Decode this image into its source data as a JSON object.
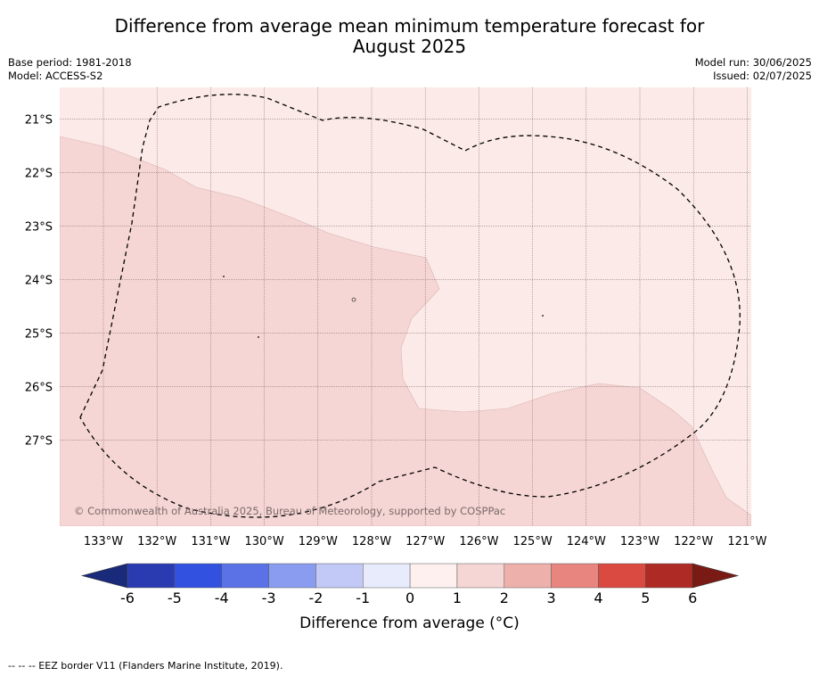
{
  "title": {
    "line1": "Difference from average mean minimum temperature forecast for",
    "line2": "August 2025"
  },
  "meta": {
    "base_period": "Base period: 1981-2018",
    "model": "Model: ACCESS-S2",
    "model_run": "Model run: 30/06/2025",
    "issued": "Issued: 02/07/2025"
  },
  "map": {
    "lat_ticks": [
      "21°S",
      "22°S",
      "23°S",
      "24°S",
      "25°S",
      "26°S",
      "27°S"
    ],
    "lon_ticks": [
      "133°W",
      "132°W",
      "131°W",
      "130°W",
      "129°W",
      "128°W",
      "127°W",
      "126°W",
      "125°W",
      "124°W",
      "123°W",
      "122°W",
      "121°W"
    ],
    "copyright": "© Commonwealth of Australia 2025, Bureau of Meteorology, supported by COSPPac",
    "colors": {
      "anomaly_0_to_1": "#fbeae8",
      "anomaly_1_to_2": "#f5d6d4",
      "grid": "#7a5a5a",
      "eez_border": "#000000"
    }
  },
  "colorbar": {
    "ticks": [
      "-6",
      "-5",
      "-4",
      "-3",
      "-2",
      "-1",
      "0",
      "1",
      "2",
      "3",
      "4",
      "5",
      "6"
    ],
    "colors": [
      "#1a2a7a",
      "#2a3bb2",
      "#3351e0",
      "#5a72e6",
      "#8a9cf0",
      "#c2c9f6",
      "#e8ebfc",
      "#fdf0ee",
      "#f5d6d4",
      "#eeb0ab",
      "#e8857e",
      "#da4a40",
      "#ae2a24",
      "#7a1a14"
    ],
    "label": "Difference from average (°C)"
  },
  "footer": "-- -- -- EEZ border V11 (Flanders Marine Institute, 2019)."
}
